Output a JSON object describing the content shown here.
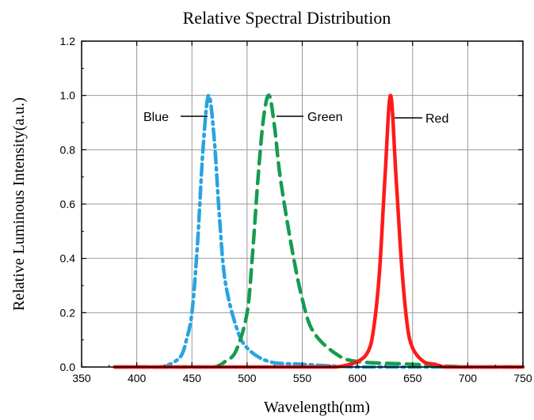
{
  "chart_data": {
    "type": "line",
    "title": "Relative Spectral Distribution",
    "xlabel": "Wavelength(nm)",
    "ylabel": "Relative Luminous Intensity(a.u.)",
    "xlim": [
      350,
      750
    ],
    "ylim": [
      0,
      1.2
    ],
    "x_ticks": [
      "350",
      "400",
      "450",
      "500",
      "550",
      "600",
      "650",
      "700",
      "750"
    ],
    "y_ticks": [
      "0.0",
      "0.2",
      "0.4",
      "0.6",
      "0.8",
      "1.0",
      "1.2"
    ],
    "grid": true,
    "series": [
      {
        "name": "Blue",
        "color": "#29a3e0",
        "line_style": "dash-dot",
        "x": [
          380,
          420,
          430,
          440,
          445,
          450,
          455,
          460,
          465,
          470,
          475,
          480,
          490,
          500,
          520,
          550,
          600,
          650,
          700,
          750
        ],
        "y": [
          0.0,
          0.0,
          0.01,
          0.04,
          0.1,
          0.2,
          0.45,
          0.8,
          1.0,
          0.85,
          0.55,
          0.32,
          0.15,
          0.07,
          0.02,
          0.01,
          0.0,
          0.0,
          0.0,
          0.0
        ]
      },
      {
        "name": "Green",
        "color": "#169c4e",
        "line_style": "dash",
        "x": [
          380,
          450,
          470,
          480,
          490,
          500,
          505,
          510,
          515,
          520,
          525,
          530,
          540,
          550,
          560,
          580,
          600,
          650,
          700,
          750
        ],
        "y": [
          0.0,
          0.0,
          0.0,
          0.02,
          0.06,
          0.2,
          0.42,
          0.7,
          0.92,
          1.0,
          0.88,
          0.7,
          0.45,
          0.25,
          0.13,
          0.05,
          0.02,
          0.01,
          0.0,
          0.0
        ]
      },
      {
        "name": "Red",
        "color": "#ff1a1a",
        "line_style": "solid",
        "x": [
          380,
          550,
          580,
          600,
          610,
          615,
          620,
          625,
          630,
          635,
          640,
          645,
          650,
          660,
          670,
          680,
          700,
          750
        ],
        "y": [
          0.0,
          0.0,
          0.0,
          0.02,
          0.06,
          0.15,
          0.35,
          0.7,
          1.0,
          0.7,
          0.38,
          0.16,
          0.07,
          0.02,
          0.01,
          0.0,
          0.0,
          0.0
        ]
      }
    ]
  }
}
